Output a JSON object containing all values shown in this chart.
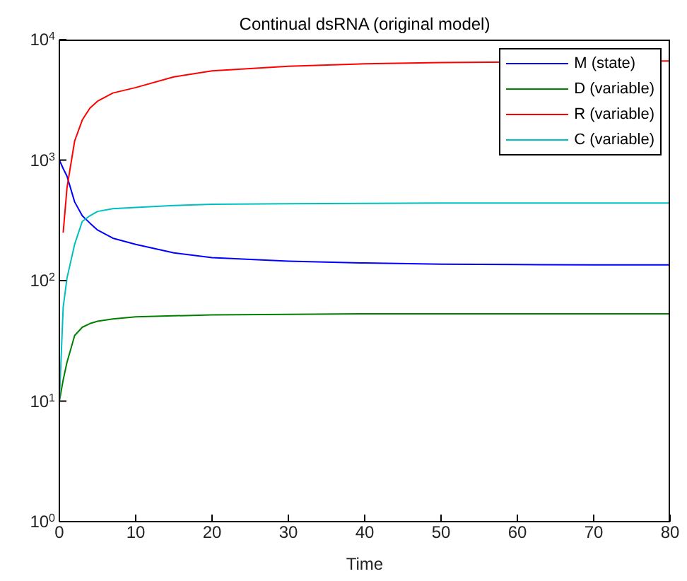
{
  "chart_data": {
    "type": "line",
    "title": "Continual dsRNA (original model)",
    "xlabel": "Time",
    "x": [
      0,
      0.5,
      1,
      2,
      3,
      4,
      5,
      7,
      10,
      15,
      20,
      30,
      40,
      50,
      60,
      70,
      80
    ],
    "series": [
      {
        "name": "M (state)",
        "color": "#0000ff",
        "values": [
          1000,
          850,
          735,
          450,
          345,
          300,
          263,
          225,
          200,
          170,
          155,
          145,
          140,
          137,
          136,
          135,
          135
        ]
      },
      {
        "name": "D (variable)",
        "color": "#008000",
        "values": [
          10,
          15,
          21,
          35,
          41,
          44,
          46,
          48,
          50,
          51,
          52,
          52.5,
          53,
          53,
          53,
          53,
          53
        ]
      },
      {
        "name": "R (variable)",
        "color": "#ff0000",
        "values": [
          null,
          250,
          590,
          1440,
          2150,
          2700,
          3080,
          3600,
          4000,
          4900,
          5500,
          6000,
          6300,
          6450,
          null,
          null,
          6650
        ]
      },
      {
        "name": "C (variable)",
        "color": "#00bfbf",
        "values": [
          10,
          60,
          105,
          200,
          310,
          345,
          375,
          395,
          405,
          420,
          430,
          435,
          438,
          440,
          440,
          440,
          440
        ]
      }
    ],
    "xlim": [
      0,
      80
    ],
    "xticks": [
      0,
      10,
      20,
      30,
      40,
      50,
      60,
      70,
      80
    ],
    "ylim": [
      1,
      10000
    ],
    "yticks": [
      {
        "value": 1,
        "label": "10$^{0}$"
      },
      {
        "value": 10,
        "label": "10$^{1}$"
      },
      {
        "value": 100,
        "label": "10$^{2}$"
      },
      {
        "value": 1000,
        "label": "10$^{3}$"
      },
      {
        "value": 10000,
        "label": "10$^{4}$"
      }
    ],
    "log": "y",
    "grid": false,
    "legend": "top right",
    "marker": "none",
    "line_style": "solid"
  }
}
